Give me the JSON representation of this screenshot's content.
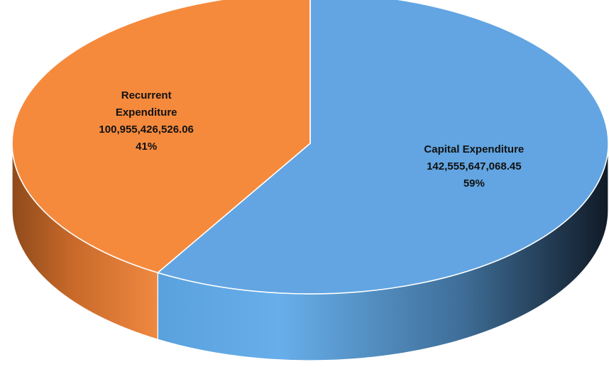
{
  "chart_data": {
    "type": "pie",
    "style": "3d",
    "slices": [
      {
        "name": "Capital Expenditure",
        "value": 142555647068.45,
        "value_label": "142,555,647,068.45",
        "percent": 59,
        "percent_label": "59%",
        "label_lines": [
          "Capital Expenditure"
        ],
        "color": "#62a5e2"
      },
      {
        "name": "Recurrent Expenditure",
        "value": 100955426526.06,
        "value_label": "100,955,426,526.06",
        "percent": 41,
        "percent_label": "41%",
        "label_lines": [
          "Recurrent",
          "Expenditure"
        ],
        "color": "#f58a3d"
      }
    ],
    "start_angle": "12 o'clock",
    "direction": "clockwise",
    "legend": "none"
  }
}
